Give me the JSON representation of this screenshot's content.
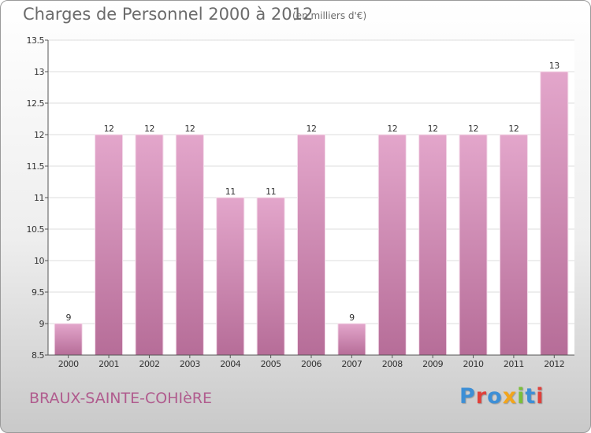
{
  "header": {
    "title": "Charges de Personnel 2000 à 2012",
    "subtitle": "(en milliers d'€)"
  },
  "footer": {
    "commune": "BRAUX-SAINTE-COHIèRE",
    "brand": "Proxiti",
    "brand_letters": [
      {
        "ch": "P",
        "color": "#3d8fd6"
      },
      {
        "ch": "r",
        "color": "#e0413b"
      },
      {
        "ch": "o",
        "color": "#3d8fd6"
      },
      {
        "ch": "x",
        "color": "#f2a51c"
      },
      {
        "ch": "i",
        "color": "#7bbf3a"
      },
      {
        "ch": "t",
        "color": "#3d8fd6"
      },
      {
        "ch": "i",
        "color": "#e0413b"
      }
    ]
  },
  "colors": {
    "bar_top": "#e3a6cb",
    "bar_bottom": "#b66d98",
    "axis_text": "#333333",
    "grid": "#dddddd"
  },
  "chart_data": {
    "type": "bar",
    "categories": [
      "2000",
      "2001",
      "2002",
      "2003",
      "2004",
      "2005",
      "2006",
      "2007",
      "2008",
      "2009",
      "2010",
      "2011",
      "2012"
    ],
    "values": [
      9,
      12,
      12,
      12,
      11,
      11,
      12,
      9,
      12,
      12,
      12,
      12,
      13
    ],
    "data_labels": [
      "9",
      "12",
      "12",
      "12",
      "11",
      "11",
      "12",
      "9",
      "12",
      "12",
      "12",
      "12",
      "13"
    ],
    "yticks": [
      "8.5",
      "9",
      "9.5",
      "10",
      "10.5",
      "11",
      "11.5",
      "12",
      "12.5",
      "13",
      "13.5"
    ],
    "ylim": [
      8.5,
      13.5
    ],
    "grid": true
  }
}
